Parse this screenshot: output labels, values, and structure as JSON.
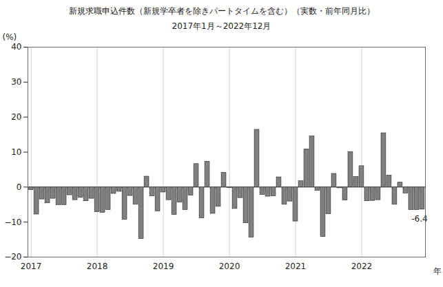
{
  "chart_data": {
    "type": "bar",
    "title": "新規求職申込件数（新規学卒者を除きパートタイムを含む）（実数・前年同月比）",
    "subtitle": "2017年1月～2022年12月",
    "x_label": "年",
    "y_label": "(%)",
    "categories": [
      "2017",
      null,
      null,
      null,
      null,
      null,
      null,
      null,
      null,
      null,
      null,
      null,
      "2018",
      null,
      null,
      null,
      null,
      null,
      null,
      null,
      null,
      null,
      null,
      null,
      "2019",
      null,
      null,
      null,
      null,
      null,
      null,
      null,
      null,
      null,
      null,
      null,
      "2020",
      null,
      null,
      null,
      null,
      null,
      null,
      null,
      null,
      null,
      null,
      null,
      "2021",
      null,
      null,
      null,
      null,
      null,
      null,
      null,
      null,
      null,
      null,
      null,
      "2022",
      null,
      null,
      null,
      null,
      null,
      null,
      null,
      null,
      null,
      null,
      null
    ],
    "values": [
      -0.8,
      -7.8,
      -3.5,
      -4.6,
      -3.3,
      -5.1,
      -5.1,
      -2.3,
      -3.7,
      -3.0,
      -4.0,
      -3.3,
      -7.1,
      -7.3,
      -6.5,
      -1.9,
      -1.3,
      -9.3,
      -2.5,
      -5.0,
      -14.8,
      3.0,
      -2.6,
      -6.9,
      -1.5,
      -3.7,
      -7.9,
      -4.4,
      -6.5,
      -2.4,
      6.6,
      -8.9,
      7.3,
      -7.6,
      -5.6,
      4.1,
      -0.2,
      -6.2,
      -3.1,
      -10.3,
      -14.4,
      16.4,
      -2.2,
      -2.7,
      -2.6,
      2.8,
      -5.0,
      -4.1,
      -9.8,
      1.7,
      10.8,
      14.5,
      -1.0,
      -14.2,
      -7.7,
      3.8,
      -0.3,
      -3.8,
      10.0,
      2.9,
      6.0,
      -4.0,
      -3.9,
      -3.7,
      15.4,
      3.3,
      -5.0,
      1.3,
      -1.8,
      -6.5,
      -6.5,
      -6.4
    ],
    "annotation": "-6.4",
    "color": "#808080",
    "ylim": [
      -20,
      40
    ],
    "yticks": [
      -20,
      -10,
      0,
      10,
      20,
      30,
      40
    ],
    "grid": true
  }
}
